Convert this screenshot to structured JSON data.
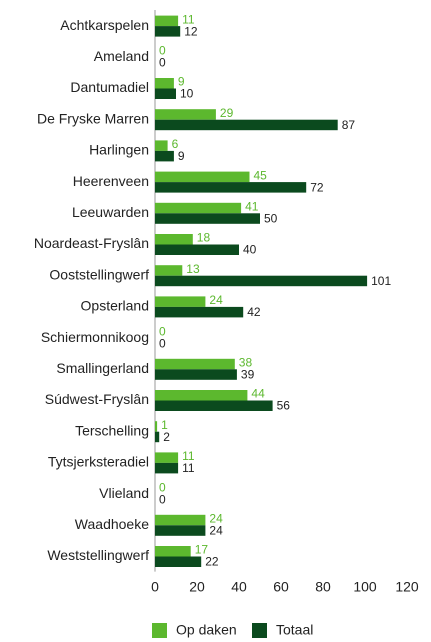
{
  "chart_data": {
    "type": "hbar",
    "categories": [
      "Achtkarspelen",
      "Ameland",
      "Dantumadiel",
      "De Fryske Marren",
      "Harlingen",
      "Heerenveen",
      "Leeuwarden",
      "Noardeast-Fryslân",
      "Ooststellingwerf",
      "Opsterland",
      "Schiermonnikoog",
      "Smallingerland",
      "Súdwest-Fryslân",
      "Terschelling",
      "Tytsjerksteradiel",
      "Vlieland",
      "Waadhoeke",
      "Weststellingwerf"
    ],
    "series": [
      {
        "name": "Op daken",
        "color": "#5cb82e",
        "values": [
          11,
          0,
          9,
          29,
          6,
          45,
          41,
          18,
          13,
          24,
          0,
          38,
          44,
          1,
          11,
          0,
          24,
          17
        ]
      },
      {
        "name": "Totaal",
        "color": "#0b4a1e",
        "values": [
          12,
          0,
          10,
          87,
          9,
          72,
          50,
          40,
          101,
          42,
          0,
          39,
          56,
          2,
          11,
          0,
          24,
          22
        ]
      }
    ],
    "xlim": [
      0,
      120
    ],
    "xticks": [
      0,
      20,
      40,
      60,
      80,
      100,
      120
    ],
    "legend": "bottom"
  }
}
